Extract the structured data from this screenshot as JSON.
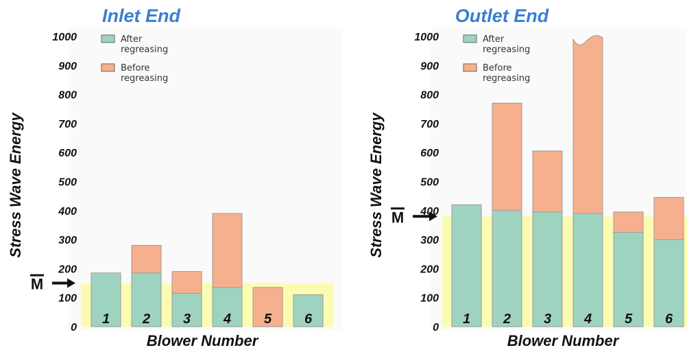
{
  "chart_data": [
    {
      "type": "bar",
      "title": "Inlet End",
      "ylabel": "Stress Wave Energy",
      "xlabel": "Blower Number",
      "ylim": [
        0,
        1000
      ],
      "yticks": [
        0,
        100,
        200,
        300,
        400,
        500,
        600,
        700,
        800,
        900,
        1000
      ],
      "categories": [
        "1",
        "2",
        "3",
        "4",
        "5",
        "6"
      ],
      "series": [
        {
          "name": "After regreasing",
          "color": "#9ed4bf",
          "values": [
            185,
            185,
            115,
            135,
            null,
            110
          ]
        },
        {
          "name": "Before regreasing",
          "color": "#f7b08d",
          "values": [
            null,
            280,
            190,
            390,
            135,
            null
          ]
        }
      ],
      "reference_line": {
        "label": "M",
        "value": 150,
        "color": "#fbfcb1"
      },
      "legend": "top-left"
    },
    {
      "type": "bar",
      "title": "Outlet End",
      "ylabel": "Stress Wave Energy",
      "xlabel": "Blower Number",
      "ylim": [
        0,
        1000
      ],
      "yticks": [
        0,
        100,
        200,
        300,
        400,
        500,
        600,
        700,
        800,
        900,
        1000
      ],
      "categories": [
        "1",
        "2",
        "3",
        "4",
        "5",
        "6"
      ],
      "series": [
        {
          "name": "After regreasing",
          "color": "#9ed4bf",
          "values": [
            420,
            400,
            395,
            390,
            325,
            300
          ]
        },
        {
          "name": "Before regreasing",
          "color": "#f7b08d",
          "values": [
            null,
            770,
            605,
            1000,
            395,
            445
          ]
        }
      ],
      "reference_line": {
        "label": "M",
        "value": 380,
        "color": "#fbfcb1"
      },
      "legend": "top-left"
    }
  ],
  "legend_labels": {
    "after_line1": "After",
    "after_line2": "regreasing",
    "before_line1": "Before",
    "before_line2": "regreasing"
  }
}
